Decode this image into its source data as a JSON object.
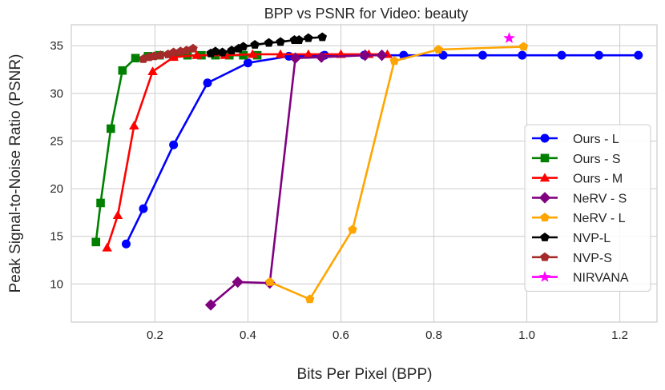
{
  "chart_data": {
    "type": "line",
    "title": "BPP vs PSNR for Video: beauty",
    "xlabel": "Bits Per Pixel (BPP)",
    "ylabel": "Peak Signal-to-Noise Ratio (PSNR)",
    "xlim": [
      0.02,
      1.28
    ],
    "ylim": [
      6.0,
      37.2
    ],
    "xticks": [
      "0.2",
      "0.4",
      "0.6",
      "0.8",
      "1.0",
      "1.2"
    ],
    "yticks": [
      "10",
      "15",
      "20",
      "25",
      "30",
      "35"
    ],
    "grid": true,
    "legend_position": "right",
    "series": [
      {
        "name": "Ours - L",
        "color": "#0000ff",
        "marker": "circle",
        "x": [
          0.138,
          0.175,
          0.24,
          0.313,
          0.4,
          0.488,
          0.565,
          0.65,
          0.735,
          0.82,
          0.905,
          0.99,
          1.075,
          1.155,
          1.24
        ],
        "y": [
          14.2,
          17.9,
          24.6,
          31.1,
          33.2,
          33.9,
          34.0,
          34.0,
          34.0,
          34.0,
          34.0,
          34.0,
          34.0,
          34.0,
          34.0
        ]
      },
      {
        "name": "Ours - S",
        "color": "#008000",
        "marker": "square",
        "x": [
          0.073,
          0.083,
          0.105,
          0.13,
          0.158,
          0.185,
          0.21,
          0.24,
          0.27,
          0.3,
          0.33,
          0.36,
          0.39,
          0.42
        ],
        "y": [
          14.4,
          18.5,
          26.3,
          32.4,
          33.7,
          33.9,
          34.0,
          34.0,
          34.0,
          34.0,
          34.0,
          34.0,
          34.0,
          34.0
        ]
      },
      {
        "name": "Ours - M",
        "color": "#ff0000",
        "marker": "triangle",
        "x": [
          0.097,
          0.12,
          0.155,
          0.195,
          0.24,
          0.29,
          0.35,
          0.41,
          0.47,
          0.53,
          0.6,
          0.66,
          0.7
        ],
        "y": [
          13.8,
          17.2,
          26.6,
          32.3,
          33.8,
          34.0,
          34.0,
          34.1,
          34.1,
          34.1,
          34.1,
          34.1,
          34.1
        ]
      },
      {
        "name": "NeRV - S",
        "color": "#800080",
        "marker": "diamond",
        "x": [
          0.32,
          0.378,
          0.447,
          0.502,
          0.558,
          0.652,
          0.688
        ],
        "y": [
          7.8,
          10.2,
          10.1,
          33.7,
          33.8,
          34.0,
          34.0
        ]
      },
      {
        "name": "NeRV - L",
        "color": "#ffa500",
        "marker": "pentagon",
        "x": [
          0.447,
          0.533,
          0.625,
          0.715,
          0.81,
          0.993
        ],
        "y": [
          10.2,
          8.4,
          15.7,
          33.4,
          34.6,
          34.9
        ]
      },
      {
        "name": "NVP-L",
        "color": "#000000",
        "marker": "pentagon",
        "x": [
          0.32,
          0.33,
          0.345,
          0.365,
          0.38,
          0.39,
          0.415,
          0.445,
          0.47,
          0.5,
          0.51,
          0.53,
          0.56
        ],
        "y": [
          34.2,
          34.4,
          34.3,
          34.5,
          34.7,
          34.9,
          35.1,
          35.3,
          35.4,
          35.6,
          35.6,
          35.8,
          35.9
        ]
      },
      {
        "name": "NVP-S",
        "color": "#a52a2a",
        "marker": "pentagon",
        "x": [
          0.175,
          0.187,
          0.198,
          0.212,
          0.228,
          0.24,
          0.255,
          0.268,
          0.282
        ],
        "y": [
          33.6,
          33.8,
          33.9,
          34.0,
          34.1,
          34.3,
          34.4,
          34.5,
          34.7
        ]
      },
      {
        "name": "NIRVANA",
        "color": "#ff00ff",
        "marker": "star",
        "x": [
          0.962
        ],
        "y": [
          35.8
        ]
      }
    ]
  }
}
